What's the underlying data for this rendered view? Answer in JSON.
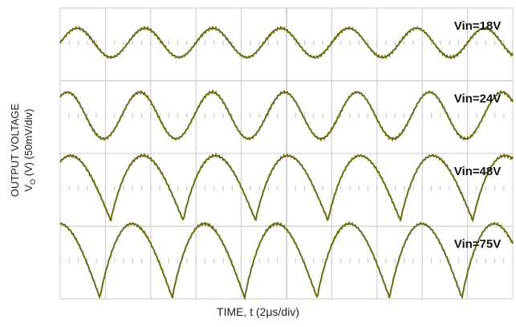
{
  "chart_data": {
    "type": "line",
    "title": "",
    "xlabel": "TIME, t (2μs/div)",
    "ylabel_line1": "OUTPUT VOLTAGE",
    "ylabel_line2": "V",
    "ylabel_sub": "O",
    "ylabel_line2_rest": " (V) (50mV/div)",
    "x_divisions": 10,
    "y_divisions": 4,
    "x_unit_per_div_us": 2,
    "grid": true,
    "trace_color": "#6b6b14",
    "grid_color": "#c8c8c8",
    "series": [
      {
        "name": "Vin=18V",
        "period_us": 3.0,
        "amplitude_mv": 10,
        "shape": "sine"
      },
      {
        "name": "Vin=24V",
        "period_us": 3.2,
        "amplitude_mv": 16,
        "shape": "sine"
      },
      {
        "name": "Vin=48V",
        "period_us": 3.2,
        "amplitude_mv": 28,
        "shape": "sawtooth"
      },
      {
        "name": "Vin=75V",
        "period_us": 3.2,
        "amplitude_mv": 32,
        "shape": "sawtooth"
      }
    ]
  }
}
